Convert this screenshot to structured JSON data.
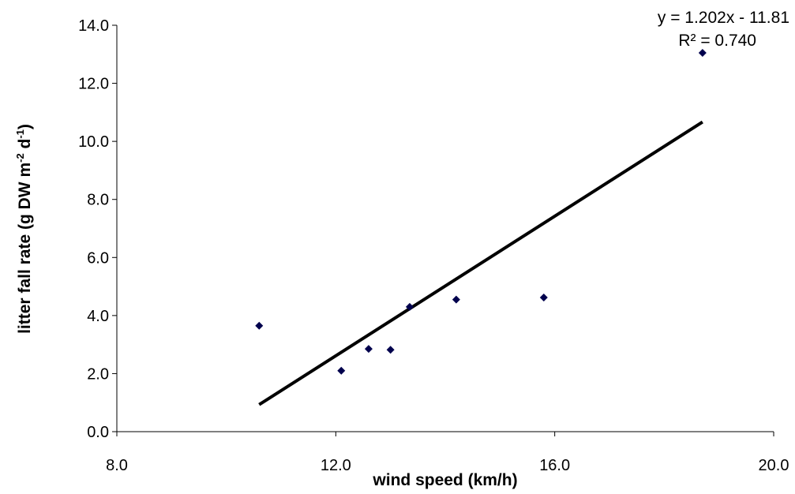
{
  "chart_data": {
    "type": "scatter",
    "xlabel": "wind speed (km/h)",
    "ylabel": {
      "base": "litter fall rate (g DW m",
      "exp1": "-2",
      "mid": " d",
      "exp2": "-1",
      "end": ")"
    },
    "xlim": [
      8.0,
      20.0
    ],
    "ylim": [
      0.0,
      14.0
    ],
    "x_ticks": [
      8.0,
      12.0,
      16.0,
      20.0
    ],
    "y_ticks": [
      0.0,
      2.0,
      4.0,
      6.0,
      8.0,
      10.0,
      12.0,
      14.0
    ],
    "grid": false,
    "legend": "none",
    "marker_color": "#00004D",
    "trendline_color": "#000000",
    "series": [
      {
        "points": [
          {
            "x": 10.6,
            "y": 3.65
          },
          {
            "x": 12.1,
            "y": 2.1
          },
          {
            "x": 12.6,
            "y": 2.85
          },
          {
            "x": 13.0,
            "y": 2.82
          },
          {
            "x": 13.35,
            "y": 4.3
          },
          {
            "x": 14.2,
            "y": 4.55
          },
          {
            "x": 15.8,
            "y": 4.62
          },
          {
            "x": 18.7,
            "y": 13.05
          }
        ]
      }
    ],
    "trendline": {
      "slope": 1.202,
      "intercept": -11.81,
      "x_range": [
        10.6,
        18.7
      ],
      "equation": "y = 1.202x - 11.81",
      "r2_label": "R² = 0.740"
    }
  }
}
